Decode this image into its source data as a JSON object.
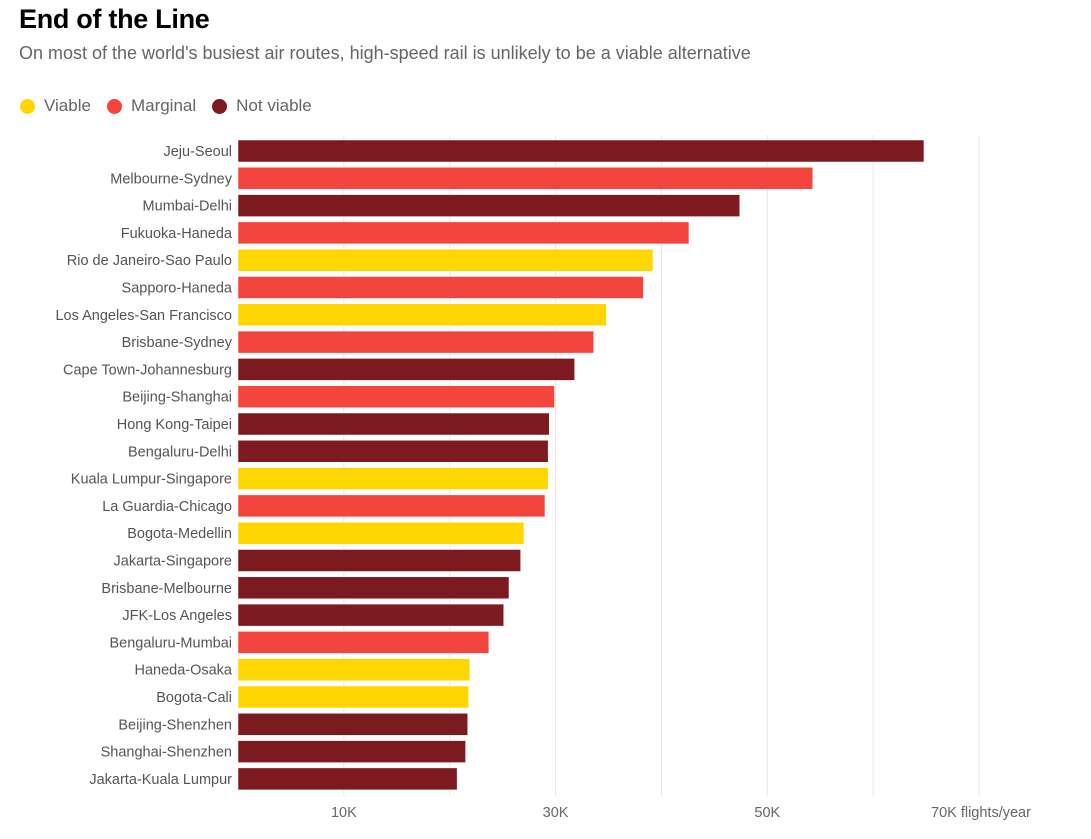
{
  "chart_data": {
    "type": "bar",
    "orientation": "horizontal",
    "title": "End of the Line",
    "subtitle": "On most of the world's busiest air routes, high-speed rail is unlikely to be a viable alternative",
    "xlabel": "flights/year",
    "xlim": [
      0,
      70000
    ],
    "gridlines": [
      10000,
      20000,
      30000,
      40000,
      50000,
      60000,
      70000
    ],
    "ticks": [
      {
        "value": 10000,
        "label": "10K"
      },
      {
        "value": 30000,
        "label": "30K"
      },
      {
        "value": 50000,
        "label": "50K"
      },
      {
        "value": 70000,
        "label": "70K flights/year"
      }
    ],
    "legend": [
      {
        "key": "viable",
        "label": "Viable",
        "color": "#FFD600"
      },
      {
        "key": "marginal",
        "label": "Marginal",
        "color": "#F4443E"
      },
      {
        "key": "not",
        "label": "Not viable",
        "color": "#7D1A20"
      }
    ],
    "legend_position": "top-left",
    "categories": [
      "Jeju-Seoul",
      "Melbourne-Sydney",
      "Mumbai-Delhi",
      "Fukuoka-Haneda",
      "Rio de Janeiro-Sao Paulo",
      "Sapporo-Haneda",
      "Los Angeles-San Francisco",
      "Brisbane-Sydney",
      "Cape Town-Johannesburg",
      "Beijing-Shanghai",
      "Hong Kong-Taipei",
      "Bengaluru-Delhi",
      "Kuala Lumpur-Singapore",
      "La Guardia-Chicago",
      "Bogota-Medellin",
      "Jakarta-Singapore",
      "Brisbane-Melbourne",
      "JFK-Los Angeles",
      "Bengaluru-Mumbai",
      "Haneda-Osaka",
      "Bogota-Cali",
      "Beijing-Shenzhen",
      "Shanghai-Shenzhen",
      "Jakarta-Kuala Lumpur"
    ],
    "values": [
      64800,
      54300,
      47400,
      42600,
      39200,
      38300,
      34800,
      33600,
      31800,
      29900,
      29400,
      29300,
      29300,
      29000,
      27000,
      26700,
      25600,
      25100,
      23700,
      21900,
      21800,
      21700,
      21500,
      20700
    ],
    "status": [
      "not",
      "marginal",
      "not",
      "marginal",
      "viable",
      "marginal",
      "viable",
      "marginal",
      "not",
      "marginal",
      "not",
      "not",
      "viable",
      "marginal",
      "viable",
      "not",
      "not",
      "not",
      "marginal",
      "viable",
      "viable",
      "not",
      "not",
      "not"
    ]
  }
}
